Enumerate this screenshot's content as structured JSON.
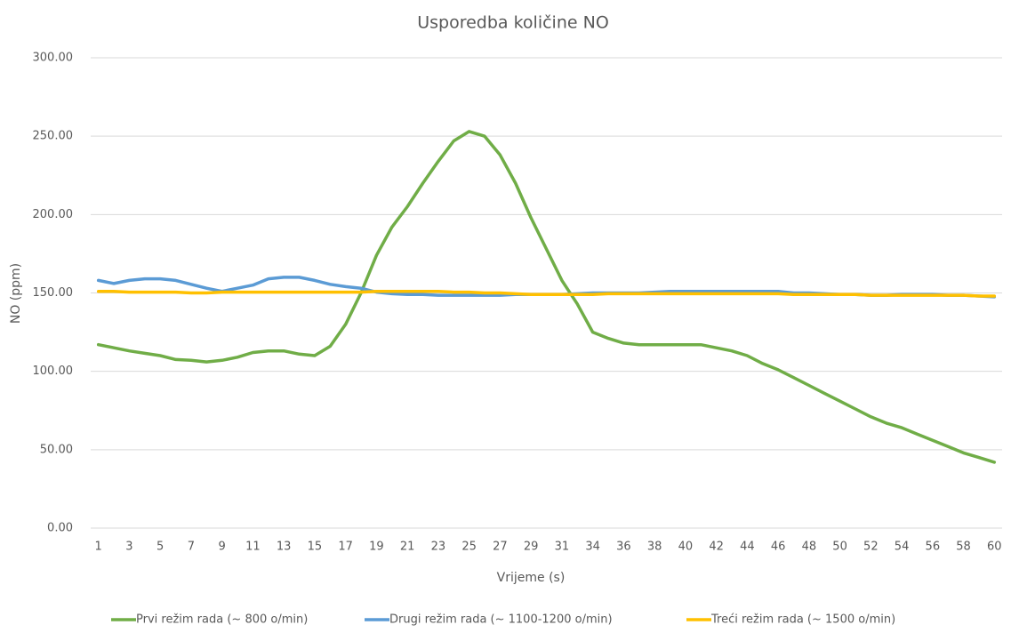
{
  "chart_data": {
    "type": "line",
    "title": "Usporedba količine NO",
    "x_label": "Vrijeme (s)",
    "y_label": "NO (ppm)",
    "categories": [
      "1",
      null,
      "3",
      null,
      "5",
      null,
      "7",
      null,
      "9",
      null,
      "11",
      null,
      "13",
      null,
      "15",
      null,
      "17",
      null,
      "19",
      null,
      "21",
      null,
      "23",
      null,
      "25",
      null,
      "27",
      null,
      "29",
      null,
      "31",
      null,
      "34",
      null,
      "36",
      null,
      "38",
      null,
      "40",
      null,
      "42",
      null,
      "44",
      null,
      "46",
      null,
      "48",
      null,
      "50",
      null,
      "52",
      null,
      "54",
      null,
      "56",
      null,
      "58",
      null,
      "60"
    ],
    "series": [
      {
        "name": "Prvi režim rada (~ 800 o/min)",
        "color": "#70ad47",
        "values": [
          117,
          115,
          113,
          111.5,
          110,
          107.5,
          107,
          106,
          107,
          109,
          112,
          113,
          113,
          111,
          110,
          116,
          130,
          150,
          174,
          192,
          205,
          220,
          234,
          247,
          253,
          250,
          238,
          220,
          198,
          178,
          158,
          143,
          125,
          121,
          118,
          117,
          117,
          117,
          117,
          117,
          115,
          113,
          110,
          105,
          101,
          96,
          91,
          86,
          81,
          76,
          71,
          67,
          64,
          60,
          56,
          52,
          48,
          45,
          42
        ]
      },
      {
        "name": "Drugi režim rada (~ 1100-1200 o/min)",
        "color": "#5b9bd5",
        "values": [
          158,
          156,
          158,
          159,
          159,
          158,
          155.5,
          153,
          151,
          153,
          155,
          159,
          160,
          160,
          158,
          155.5,
          154,
          153,
          150.5,
          149.5,
          149,
          149,
          148.5,
          148.5,
          148.5,
          148.5,
          148.5,
          149,
          149,
          149,
          149,
          149.5,
          150,
          150,
          150,
          150,
          150.5,
          151,
          151,
          151,
          151,
          151,
          151,
          151,
          151,
          150,
          150,
          149.5,
          149,
          149,
          148.5,
          148.5,
          149,
          149,
          149,
          148.5,
          148.5,
          148,
          147.5
        ]
      },
      {
        "name": "Treći režim rada (~ 1500 o/min)",
        "color": "#ffc000",
        "values": [
          151,
          151,
          150.5,
          150.5,
          150.5,
          150.5,
          150,
          150,
          150.5,
          150.5,
          150.5,
          150.5,
          150.5,
          150.5,
          150.5,
          150.5,
          150.5,
          150.5,
          151,
          151,
          151,
          151,
          151,
          150.5,
          150.5,
          150,
          150,
          149.5,
          149,
          149,
          149,
          149,
          149,
          149.5,
          149.5,
          149.5,
          149.5,
          149.5,
          149.5,
          149.5,
          149.5,
          149.5,
          149.5,
          149.5,
          149.5,
          149,
          149,
          149,
          149,
          149,
          148.5,
          148.5,
          148.5,
          148.5,
          148.5,
          148.5,
          148.5,
          148,
          148
        ]
      }
    ],
    "ylim": [
      0,
      300
    ],
    "yticks": [
      {
        "value": 0,
        "label": "0.00"
      },
      {
        "value": 50,
        "label": "50.00"
      },
      {
        "value": 100,
        "label": "100.00"
      },
      {
        "value": 150,
        "label": "150.00"
      },
      {
        "value": 200,
        "label": "200.00"
      },
      {
        "value": 250,
        "label": "250.00"
      },
      {
        "value": 300,
        "label": "300.00"
      }
    ],
    "grid": true,
    "legend": "bottom"
  }
}
